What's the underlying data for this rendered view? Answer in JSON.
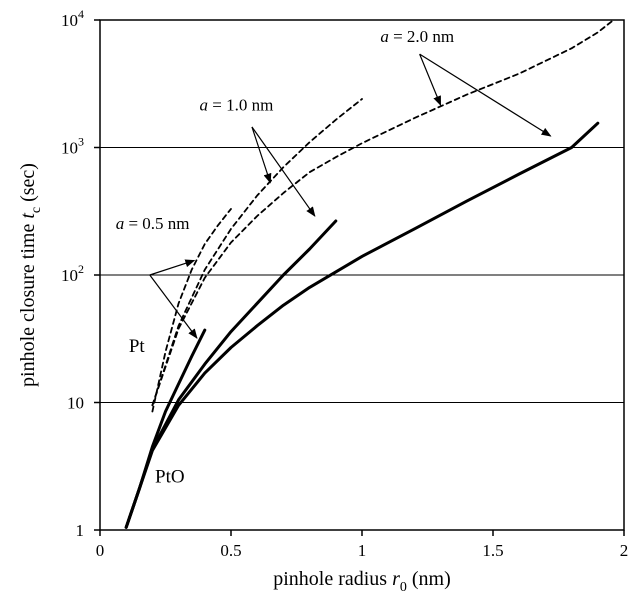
{
  "chart_data": {
    "type": "line",
    "xlabel": {
      "text": "pinhole radius ",
      "symbol": "r",
      "sub": "0",
      "unit": " (nm)"
    },
    "ylabel": {
      "text": "pinhole closure time ",
      "symbol": "t",
      "sub": "c",
      "unit": " (sec)"
    },
    "xlim": [
      0,
      2
    ],
    "ylim": [
      1,
      10000
    ],
    "yscale": "log",
    "grid": "horizontal",
    "x_ticks": [
      {
        "value": 0,
        "label": "0"
      },
      {
        "value": 0.5,
        "label": "0.5"
      },
      {
        "value": 1,
        "label": "1"
      },
      {
        "value": 1.5,
        "label": "1.5"
      },
      {
        "value": 2,
        "label": "2"
      }
    ],
    "y_ticks": [
      {
        "value": 1,
        "base": "1",
        "exp": ""
      },
      {
        "value": 10,
        "base": "10",
        "exp": ""
      },
      {
        "value": 100,
        "base": "10",
        "exp": "2"
      },
      {
        "value": 1000,
        "base": "10",
        "exp": "3"
      },
      {
        "value": 10000,
        "base": "10",
        "exp": "4"
      }
    ],
    "series": [
      {
        "style": "solid",
        "points": [
          [
            0.1,
            1.05
          ],
          [
            0.15,
            2.1
          ],
          [
            0.2,
            4.5
          ],
          [
            0.25,
            8.5
          ],
          [
            0.3,
            14
          ],
          [
            0.35,
            23
          ],
          [
            0.4,
            37
          ]
        ]
      },
      {
        "style": "solid",
        "points": [
          [
            0.1,
            1.05
          ],
          [
            0.15,
            2.1
          ],
          [
            0.2,
            4.3
          ],
          [
            0.3,
            10.5
          ],
          [
            0.4,
            20
          ],
          [
            0.5,
            36
          ],
          [
            0.6,
            60
          ],
          [
            0.7,
            100
          ],
          [
            0.8,
            160
          ],
          [
            0.9,
            265
          ]
        ]
      },
      {
        "style": "solid",
        "points": [
          [
            0.1,
            1.05
          ],
          [
            0.15,
            2.1
          ],
          [
            0.2,
            4.2
          ],
          [
            0.3,
            9.5
          ],
          [
            0.4,
            17
          ],
          [
            0.5,
            27
          ],
          [
            0.6,
            40
          ],
          [
            0.7,
            58
          ],
          [
            0.8,
            80
          ],
          [
            1.0,
            140
          ],
          [
            1.2,
            230
          ],
          [
            1.4,
            380
          ],
          [
            1.6,
            620
          ],
          [
            1.8,
            1000
          ],
          [
            1.9,
            1550
          ]
        ]
      },
      {
        "style": "dashed",
        "points": [
          [
            0.2,
            8.5
          ],
          [
            0.25,
            25
          ],
          [
            0.3,
            60
          ],
          [
            0.35,
            110
          ],
          [
            0.4,
            175
          ],
          [
            0.45,
            245
          ],
          [
            0.5,
            330
          ]
        ]
      },
      {
        "style": "dashed",
        "points": [
          [
            0.2,
            9.5
          ],
          [
            0.3,
            40
          ],
          [
            0.4,
            110
          ],
          [
            0.5,
            230
          ],
          [
            0.6,
            420
          ],
          [
            0.7,
            700
          ],
          [
            0.8,
            1100
          ],
          [
            0.9,
            1650
          ],
          [
            1.0,
            2400
          ]
        ]
      },
      {
        "style": "dashed",
        "points": [
          [
            0.2,
            9.5
          ],
          [
            0.3,
            38
          ],
          [
            0.4,
            95
          ],
          [
            0.5,
            180
          ],
          [
            0.6,
            290
          ],
          [
            0.7,
            440
          ],
          [
            0.8,
            640
          ],
          [
            0.9,
            840
          ],
          [
            1.0,
            1080
          ],
          [
            1.2,
            1700
          ],
          [
            1.4,
            2600
          ],
          [
            1.6,
            3800
          ],
          [
            1.8,
            6000
          ],
          [
            1.9,
            8000
          ],
          [
            1.96,
            10000
          ]
        ]
      }
    ],
    "annotations": [
      {
        "prefix": "a",
        "text": " = 0.5 nm",
        "x": 0.06,
        "y": 230,
        "arrows": [
          {
            "from": [
              0.19,
              100
            ],
            "to": [
              0.37,
              32
            ]
          },
          {
            "from": [
              0.19,
              100
            ],
            "to": [
              0.36,
              130
            ]
          }
        ]
      },
      {
        "prefix": "a",
        "text": " = 1.0 nm",
        "x": 0.38,
        "y": 1950,
        "arrows": [
          {
            "from": [
              0.58,
              1450
            ],
            "to": [
              0.65,
              530
            ]
          },
          {
            "from": [
              0.58,
              1450
            ],
            "to": [
              0.82,
              290
            ]
          }
        ]
      },
      {
        "prefix": "a",
        "text": " = 2.0 nm",
        "x": 1.07,
        "y": 6700,
        "arrows": [
          {
            "from": [
              1.22,
              5400
            ],
            "to": [
              1.3,
              2150
            ]
          },
          {
            "from": [
              1.22,
              5400
            ],
            "to": [
              1.72,
              1230
            ]
          }
        ]
      }
    ],
    "curve_labels": [
      {
        "text": "Pt",
        "x": 0.11,
        "y": 25
      },
      {
        "text": "PtO",
        "x": 0.21,
        "y": 2.35
      }
    ]
  }
}
